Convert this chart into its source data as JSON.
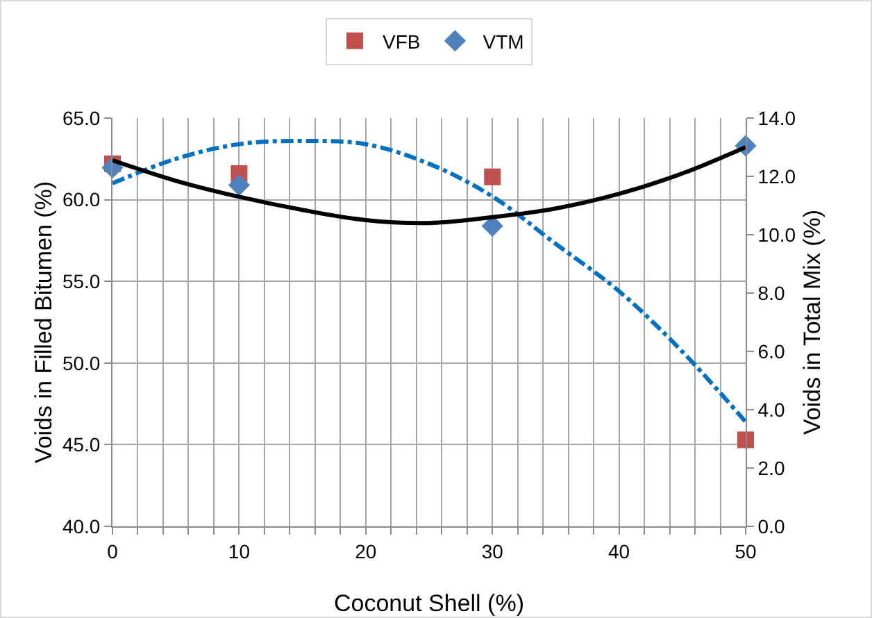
{
  "chart_data": {
    "type": "scatter",
    "xlabel": "Coconut Shell (%)",
    "ylabel": "Voids in Filled Bitumen (%)",
    "y2label": "Voids in Total Mix (%)",
    "x": [
      0,
      10,
      30,
      50
    ],
    "series": [
      {
        "name": "VFB",
        "color": "#c0504d",
        "marker": "square",
        "values": [
          62.2,
          61.6,
          61.4,
          45.3
        ]
      },
      {
        "name": "VTM",
        "color": "#4f81bd",
        "marker": "diamond",
        "axis": "y2",
        "values": [
          12.3,
          11.7,
          10.3,
          13.05
        ]
      },
      {
        "type": "line",
        "color": "#000000",
        "axis": "y2",
        "line_style": "solid",
        "marker": "none",
        "x": [
          0,
          5,
          10,
          15,
          20,
          25,
          30,
          35,
          40,
          45,
          50
        ],
        "values": [
          12.55,
          11.85,
          11.3,
          10.85,
          10.5,
          10.4,
          10.6,
          10.9,
          11.4,
          12.1,
          13.0
        ]
      },
      {
        "type": "line",
        "color": "#0070c0",
        "line_style": "dashdot",
        "marker": "none",
        "x": [
          0,
          5,
          10,
          15,
          20,
          25,
          30,
          35,
          40,
          45,
          50
        ],
        "values": [
          61.0,
          62.5,
          63.4,
          63.6,
          63.4,
          62.2,
          60.2,
          57.3,
          54.4,
          50.7,
          46.4
        ]
      }
    ],
    "xlim": [
      0,
      50
    ],
    "xticks": [
      0,
      {
        "value": 2,
        "label": null
      },
      {
        "value": 4,
        "label": null
      },
      {
        "value": 6,
        "label": null
      },
      {
        "value": 8,
        "label": null
      },
      10,
      {
        "value": 12,
        "label": null
      },
      {
        "value": 14,
        "label": null
      },
      {
        "value": 16,
        "label": null
      },
      {
        "value": 18,
        "label": null
      },
      20,
      {
        "value": 22,
        "label": null
      },
      {
        "value": 24,
        "label": null
      },
      {
        "value": 26,
        "label": null
      },
      {
        "value": 28,
        "label": null
      },
      30,
      {
        "value": 32,
        "label": null
      },
      {
        "value": 34,
        "label": null
      },
      {
        "value": 36,
        "label": null
      },
      {
        "value": 38,
        "label": null
      },
      40,
      {
        "value": 42,
        "label": null
      },
      {
        "value": 44,
        "label": null
      },
      {
        "value": 46,
        "label": null
      },
      {
        "value": 48,
        "label": null
      },
      50
    ],
    "ylim": [
      40,
      65
    ],
    "yticks": [
      {
        "value": 40,
        "label": "40.0"
      },
      {
        "value": 45,
        "label": "45.0"
      },
      {
        "value": 50,
        "label": "50.0"
      },
      {
        "value": 55,
        "label": "55.0"
      },
      {
        "value": 60,
        "label": "60.0"
      },
      {
        "value": 65,
        "label": "65.0"
      }
    ],
    "y2lim": [
      0,
      14
    ],
    "y2ticks": [
      {
        "value": 0,
        "label": "0.0"
      },
      {
        "value": 2,
        "label": "2.0"
      },
      {
        "value": 4,
        "label": "4.0"
      },
      {
        "value": 6,
        "label": "6.0"
      },
      {
        "value": 8,
        "label": "8.0"
      },
      {
        "value": 10,
        "label": "10.0"
      },
      {
        "value": 12,
        "label": "12.0"
      },
      {
        "value": 14,
        "label": "14.0"
      }
    ],
    "grid": true,
    "legend": "top"
  }
}
